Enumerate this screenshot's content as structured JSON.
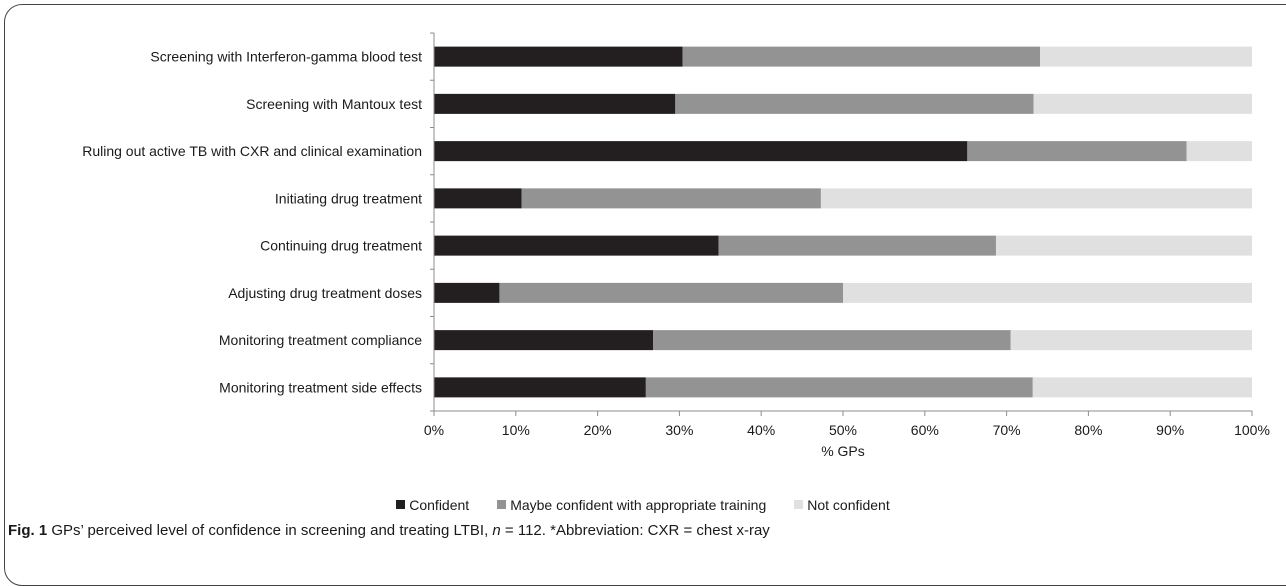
{
  "chart_data": {
    "type": "bar",
    "orientation": "horizontal",
    "stacked": true,
    "percent": true,
    "categories": [
      "Screening with Interferon-gamma blood test",
      "Screening with Mantoux test",
      "Ruling out active TB with CXR and clinical examination",
      "Initiating drug treatment",
      "Continuing drug treatment",
      "Adjusting  drug treatment doses",
      "Monitoring treatment compliance",
      "Monitoring treatment side effects"
    ],
    "series": [
      {
        "name": "Confident",
        "color": "#231f20",
        "values": [
          30.4,
          29.5,
          65.2,
          10.7,
          34.8,
          8.0,
          26.8,
          25.9
        ]
      },
      {
        "name": "Maybe confident with appropriate training",
        "color": "#939393",
        "values": [
          43.7,
          43.8,
          26.8,
          36.6,
          33.9,
          42.0,
          43.7,
          47.3
        ]
      },
      {
        "name": "Not confident",
        "color": "#e0e0e0",
        "values": [
          25.9,
          26.7,
          8.0,
          52.7,
          31.3,
          50.0,
          29.5,
          26.8
        ]
      }
    ],
    "xlim": [
      0,
      100
    ],
    "xticks": [
      "0%",
      "10%",
      "20%",
      "30%",
      "40%",
      "50%",
      "60%",
      "70%",
      "80%",
      "90%",
      "100%"
    ],
    "xlabel": "% GPs",
    "ylabel": "",
    "grid": false,
    "legend_position": "bottom"
  },
  "caption": {
    "label": "Fig. 1",
    "text_before": " GPs’ perceived level of confidence in screening and treating LTBI, ",
    "n_symbol": "n",
    "text_after": " = 112. *Abbreviation: CXR = chest x-ray"
  }
}
